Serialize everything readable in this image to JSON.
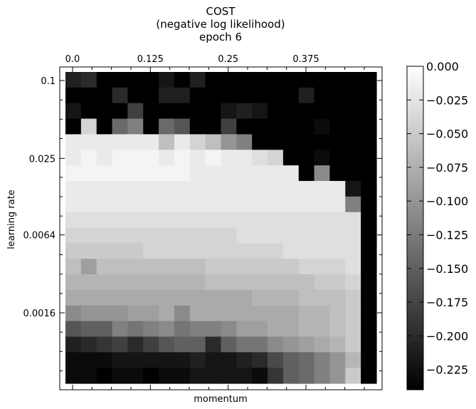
{
  "chart_data": {
    "type": "heatmap",
    "title": [
      "COST",
      "(negative log likelihood)",
      "epoch 6"
    ],
    "xlabel": "momentum",
    "ylabel": "learning rate",
    "colormap": "gray",
    "x_range": [
      0.0,
      0.475
    ],
    "x_ticks": [
      0.0,
      0.125,
      0.25,
      0.375
    ],
    "x_tick_labels": [
      "0.0",
      "0.125",
      "0.25",
      "0.375"
    ],
    "y_scale": "log",
    "y_ticks": [
      0.1,
      0.025,
      0.0064,
      0.0016
    ],
    "y_tick_labels": [
      "0.1",
      "0.025",
      "0.0064",
      "0.0016"
    ],
    "rows_learning_rate_descending": 20,
    "cols_momentum_ascending": 20,
    "values": [
      [
        -0.21,
        -0.2,
        -0.24,
        -0.24,
        -0.24,
        -0.24,
        -0.22,
        -0.24,
        -0.21,
        -0.24,
        -0.24,
        -0.24,
        -0.24,
        -0.24,
        -0.24,
        -0.24,
        -0.24,
        -0.24,
        -0.24,
        -0.24
      ],
      [
        -0.24,
        -0.24,
        -0.24,
        -0.2,
        -0.24,
        -0.24,
        -0.21,
        -0.21,
        -0.24,
        -0.24,
        -0.24,
        -0.24,
        -0.24,
        -0.24,
        -0.24,
        -0.21,
        -0.24,
        -0.24,
        -0.24,
        -0.24
      ],
      [
        -0.22,
        -0.24,
        -0.24,
        -0.24,
        -0.18,
        -0.24,
        -0.24,
        -0.24,
        -0.24,
        -0.24,
        -0.22,
        -0.21,
        -0.22,
        -0.24,
        -0.24,
        -0.24,
        -0.24,
        -0.24,
        -0.24,
        -0.24
      ],
      [
        -0.24,
        -0.04,
        -0.24,
        -0.14,
        -0.12,
        -0.24,
        -0.14,
        -0.16,
        -0.24,
        -0.24,
        -0.18,
        -0.24,
        -0.24,
        -0.24,
        -0.24,
        -0.24,
        -0.23,
        -0.24,
        -0.24,
        -0.24
      ],
      [
        -0.02,
        -0.02,
        -0.02,
        -0.02,
        -0.02,
        -0.02,
        -0.06,
        -0.02,
        -0.04,
        -0.06,
        -0.1,
        -0.12,
        -0.24,
        -0.24,
        -0.24,
        -0.24,
        -0.24,
        -0.24,
        -0.24,
        -0.24
      ],
      [
        -0.02,
        -0.01,
        -0.02,
        -0.01,
        -0.01,
        -0.01,
        -0.02,
        -0.01,
        -0.02,
        -0.01,
        -0.02,
        -0.02,
        -0.03,
        -0.04,
        -0.24,
        -0.24,
        -0.23,
        -0.24,
        -0.24,
        -0.24
      ],
      [
        -0.01,
        -0.01,
        -0.01,
        -0.01,
        -0.01,
        -0.01,
        -0.01,
        -0.01,
        -0.02,
        -0.02,
        -0.02,
        -0.02,
        -0.02,
        -0.02,
        -0.02,
        -0.24,
        -0.11,
        -0.24,
        -0.24,
        -0.24
      ],
      [
        -0.02,
        -0.02,
        -0.02,
        -0.02,
        -0.02,
        -0.02,
        -0.02,
        -0.02,
        -0.02,
        -0.02,
        -0.02,
        -0.02,
        -0.02,
        -0.02,
        -0.02,
        -0.02,
        -0.02,
        -0.02,
        -0.22,
        -0.24
      ],
      [
        -0.02,
        -0.02,
        -0.02,
        -0.02,
        -0.02,
        -0.02,
        -0.02,
        -0.02,
        -0.02,
        -0.02,
        -0.02,
        -0.02,
        -0.02,
        -0.02,
        -0.02,
        -0.02,
        -0.02,
        -0.02,
        -0.12,
        -0.24
      ],
      [
        -0.03,
        -0.03,
        -0.03,
        -0.03,
        -0.03,
        -0.03,
        -0.03,
        -0.03,
        -0.03,
        -0.03,
        -0.03,
        -0.03,
        -0.03,
        -0.03,
        -0.03,
        -0.03,
        -0.03,
        -0.03,
        -0.03,
        -0.24
      ],
      [
        -0.04,
        -0.04,
        -0.04,
        -0.04,
        -0.04,
        -0.04,
        -0.04,
        -0.04,
        -0.04,
        -0.04,
        -0.04,
        -0.03,
        -0.03,
        -0.03,
        -0.03,
        -0.03,
        -0.03,
        -0.03,
        -0.03,
        -0.24
      ],
      [
        -0.05,
        -0.05,
        -0.05,
        -0.05,
        -0.05,
        -0.04,
        -0.04,
        -0.04,
        -0.04,
        -0.04,
        -0.04,
        -0.04,
        -0.04,
        -0.04,
        -0.03,
        -0.03,
        -0.03,
        -0.03,
        -0.03,
        -0.24
      ],
      [
        -0.06,
        -0.09,
        -0.06,
        -0.06,
        -0.06,
        -0.06,
        -0.06,
        -0.06,
        -0.06,
        -0.05,
        -0.05,
        -0.05,
        -0.05,
        -0.05,
        -0.05,
        -0.04,
        -0.04,
        -0.04,
        -0.03,
        -0.24
      ],
      [
        -0.07,
        -0.07,
        -0.07,
        -0.07,
        -0.07,
        -0.07,
        -0.07,
        -0.07,
        -0.07,
        -0.06,
        -0.06,
        -0.06,
        -0.06,
        -0.06,
        -0.06,
        -0.06,
        -0.05,
        -0.05,
        -0.04,
        -0.24
      ],
      [
        -0.08,
        -0.08,
        -0.08,
        -0.08,
        -0.08,
        -0.08,
        -0.08,
        -0.08,
        -0.08,
        -0.08,
        -0.08,
        -0.08,
        -0.07,
        -0.07,
        -0.07,
        -0.06,
        -0.06,
        -0.06,
        -0.05,
        -0.24
      ],
      [
        -0.11,
        -0.1,
        -0.1,
        -0.1,
        -0.09,
        -0.09,
        -0.08,
        -0.11,
        -0.08,
        -0.08,
        -0.08,
        -0.08,
        -0.08,
        -0.08,
        -0.08,
        -0.07,
        -0.07,
        -0.06,
        -0.05,
        -0.24
      ],
      [
        -0.16,
        -0.15,
        -0.15,
        -0.12,
        -0.13,
        -0.12,
        -0.11,
        -0.13,
        -0.12,
        -0.12,
        -0.11,
        -0.09,
        -0.09,
        -0.08,
        -0.08,
        -0.07,
        -0.07,
        -0.06,
        -0.05,
        -0.24
      ],
      [
        -0.21,
        -0.2,
        -0.19,
        -0.18,
        -0.2,
        -0.18,
        -0.16,
        -0.15,
        -0.15,
        -0.2,
        -0.15,
        -0.13,
        -0.13,
        -0.11,
        -0.1,
        -0.09,
        -0.08,
        -0.07,
        -0.05,
        -0.24
      ],
      [
        -0.23,
        -0.23,
        -0.23,
        -0.22,
        -0.22,
        -0.22,
        -0.22,
        -0.22,
        -0.21,
        -0.22,
        -0.22,
        -0.21,
        -0.2,
        -0.17,
        -0.15,
        -0.14,
        -0.12,
        -0.1,
        -0.07,
        -0.24
      ],
      [
        -0.23,
        -0.23,
        -0.24,
        -0.23,
        -0.23,
        -0.24,
        -0.23,
        -0.23,
        -0.22,
        -0.22,
        -0.22,
        -0.22,
        -0.23,
        -0.19,
        -0.15,
        -0.14,
        -0.12,
        -0.1,
        -0.05,
        -0.24
      ]
    ],
    "colorbar": {
      "vmin": -0.24,
      "vmax": 0.0,
      "ticks": [
        0.0,
        -0.025,
        -0.05,
        -0.075,
        -0.1,
        -0.125,
        -0.15,
        -0.175,
        -0.2,
        -0.225
      ],
      "tick_labels": [
        "0.000",
        "−0.025",
        "−0.050",
        "−0.075",
        "−0.100",
        "−0.125",
        "−0.150",
        "−0.175",
        "−0.200",
        "−0.225"
      ]
    },
    "grid": false
  }
}
